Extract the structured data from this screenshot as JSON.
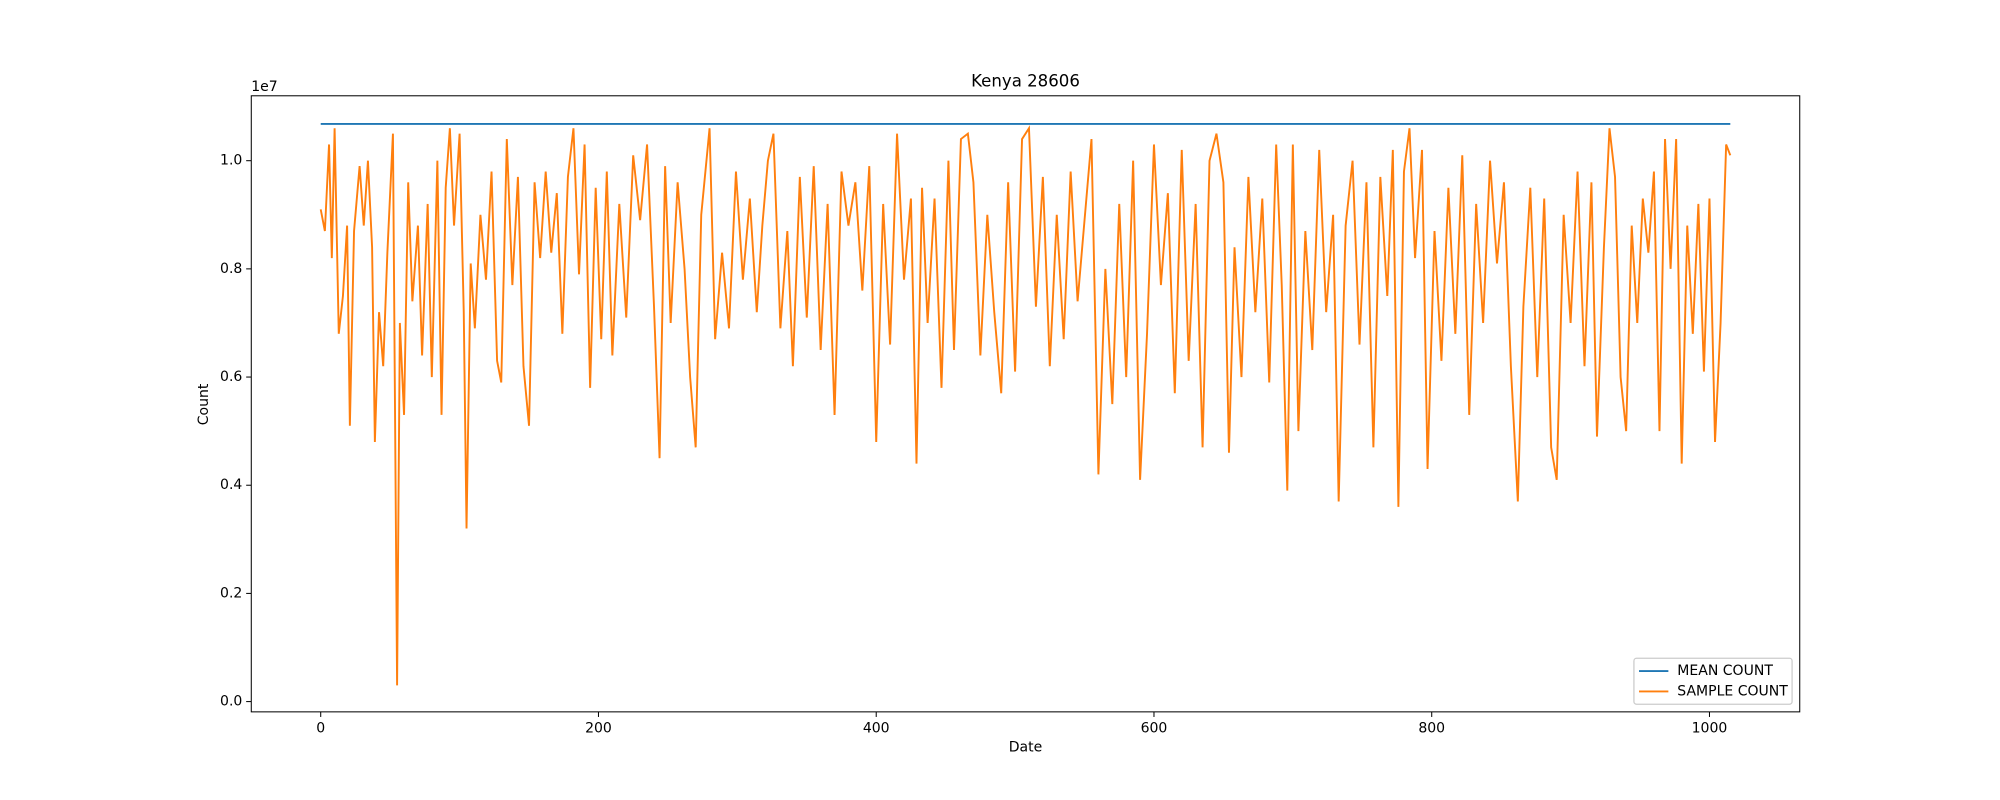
{
  "chart_data": {
    "type": "line",
    "title": "Kenya 28606",
    "x_label": "Date",
    "y_label": "Count",
    "y_offset_label": "1e7",
    "xlim": [
      -50,
      1065
    ],
    "ylim": [
      -0.019,
      1.12
    ],
    "xticks": [
      0,
      200,
      400,
      600,
      800,
      1000
    ],
    "yticks": [
      {
        "value": 0,
        "label": "0.0"
      },
      {
        "value": 0.2,
        "label": "0.2"
      },
      {
        "value": 0.4,
        "label": "0.4"
      },
      {
        "value": 0.6,
        "label": "0.6"
      },
      {
        "value": 0.8,
        "label": "0.8"
      },
      {
        "value": 1,
        "label": "1.0"
      }
    ],
    "grid": false,
    "legend": "lower right",
    "series": [
      {
        "name": "MEAN COUNT",
        "color": "#1f77b4",
        "x": [
          0,
          1015
        ],
        "values": [
          1.068,
          1.068
        ]
      },
      {
        "name": "SAMPLE COUNT",
        "color": "#ff7f0e",
        "x": [
          0,
          3,
          6,
          8,
          10,
          13,
          16,
          19,
          21,
          24,
          28,
          31,
          34,
          37,
          39,
          42,
          45,
          48,
          52,
          55,
          57,
          60,
          63,
          66,
          70,
          73,
          77,
          80,
          84,
          87,
          90,
          93,
          96,
          100,
          103,
          105,
          108,
          111,
          115,
          119,
          123,
          127,
          130,
          134,
          138,
          142,
          146,
          150,
          154,
          158,
          162,
          166,
          170,
          174,
          178,
          182,
          186,
          190,
          194,
          198,
          202,
          206,
          210,
          215,
          220,
          225,
          230,
          235,
          240,
          244,
          248,
          252,
          257,
          262,
          266,
          270,
          274,
          280,
          284,
          289,
          294,
          299,
          304,
          309,
          314,
          318,
          322,
          326,
          331,
          336,
          340,
          345,
          350,
          355,
          360,
          365,
          370,
          375,
          380,
          385,
          390,
          395,
          400,
          405,
          410,
          415,
          420,
          425,
          429,
          433,
          437,
          442,
          447,
          452,
          456,
          461,
          466,
          470,
          475,
          480,
          485,
          490,
          495,
          500,
          505,
          510,
          515,
          520,
          525,
          530,
          535,
          540,
          545,
          550,
          555,
          560,
          565,
          570,
          575,
          580,
          585,
          590,
          595,
          600,
          605,
          610,
          615,
          620,
          625,
          630,
          635,
          640,
          645,
          650,
          654,
          658,
          663,
          668,
          673,
          678,
          683,
          688,
          692,
          696,
          700,
          704,
          709,
          714,
          719,
          724,
          729,
          733,
          738,
          743,
          748,
          753,
          758,
          763,
          768,
          772,
          776,
          780,
          784,
          788,
          793,
          797,
          802,
          807,
          812,
          817,
          822,
          827,
          832,
          837,
          842,
          847,
          852,
          857,
          862,
          866,
          871,
          876,
          881,
          886,
          890,
          895,
          900,
          905,
          910,
          915,
          919,
          924,
          928,
          932,
          936,
          940,
          944,
          948,
          952,
          956,
          960,
          964,
          968,
          972,
          976,
          980,
          984,
          988,
          992,
          996,
          1000,
          1004,
          1008,
          1012,
          1015
        ],
        "values": [
          0.91,
          0.87,
          1.03,
          0.82,
          1.06,
          0.68,
          0.75,
          0.88,
          0.51,
          0.87,
          0.99,
          0.88,
          1.0,
          0.84,
          0.48,
          0.72,
          0.62,
          0.83,
          1.05,
          0.03,
          0.7,
          0.53,
          0.96,
          0.74,
          0.88,
          0.64,
          0.92,
          0.6,
          1.0,
          0.53,
          0.95,
          1.06,
          0.88,
          1.05,
          0.72,
          0.32,
          0.81,
          0.69,
          0.9,
          0.78,
          0.98,
          0.63,
          0.59,
          1.04,
          0.77,
          0.97,
          0.62,
          0.51,
          0.96,
          0.82,
          0.98,
          0.83,
          0.94,
          0.68,
          0.97,
          1.06,
          0.79,
          1.03,
          0.58,
          0.95,
          0.67,
          0.98,
          0.64,
          0.92,
          0.71,
          1.01,
          0.89,
          1.03,
          0.73,
          0.45,
          0.99,
          0.7,
          0.96,
          0.8,
          0.6,
          0.47,
          0.9,
          1.06,
          0.67,
          0.83,
          0.69,
          0.98,
          0.78,
          0.93,
          0.72,
          0.88,
          1.0,
          1.05,
          0.69,
          0.87,
          0.62,
          0.97,
          0.71,
          0.99,
          0.65,
          0.92,
          0.53,
          0.98,
          0.88,
          0.96,
          0.76,
          0.99,
          0.48,
          0.92,
          0.66,
          1.05,
          0.78,
          0.93,
          0.44,
          0.95,
          0.7,
          0.93,
          0.58,
          1.0,
          0.65,
          1.04,
          1.05,
          0.96,
          0.64,
          0.9,
          0.72,
          0.57,
          0.96,
          0.61,
          1.04,
          1.06,
          0.73,
          0.97,
          0.62,
          0.9,
          0.67,
          0.98,
          0.74,
          0.89,
          1.04,
          0.42,
          0.8,
          0.55,
          0.92,
          0.6,
          1.0,
          0.41,
          0.68,
          1.03,
          0.77,
          0.94,
          0.57,
          1.02,
          0.63,
          0.92,
          0.47,
          1.0,
          1.05,
          0.96,
          0.46,
          0.84,
          0.6,
          0.97,
          0.72,
          0.93,
          0.59,
          1.03,
          0.77,
          0.39,
          1.03,
          0.5,
          0.87,
          0.65,
          1.02,
          0.72,
          0.9,
          0.37,
          0.88,
          1.0,
          0.66,
          0.96,
          0.47,
          0.97,
          0.75,
          1.02,
          0.36,
          0.98,
          1.06,
          0.82,
          1.02,
          0.43,
          0.87,
          0.63,
          0.95,
          0.68,
          1.01,
          0.53,
          0.92,
          0.7,
          1.0,
          0.81,
          0.96,
          0.62,
          0.37,
          0.73,
          0.95,
          0.6,
          0.93,
          0.47,
          0.41,
          0.9,
          0.7,
          0.98,
          0.62,
          0.96,
          0.49,
          0.84,
          1.06,
          0.97,
          0.6,
          0.5,
          0.88,
          0.7,
          0.93,
          0.83,
          0.98,
          0.5,
          1.04,
          0.8,
          1.04,
          0.44,
          0.88,
          0.68,
          0.92,
          0.61,
          0.93,
          0.48,
          0.7,
          1.03,
          1.01
        ]
      }
    ]
  }
}
